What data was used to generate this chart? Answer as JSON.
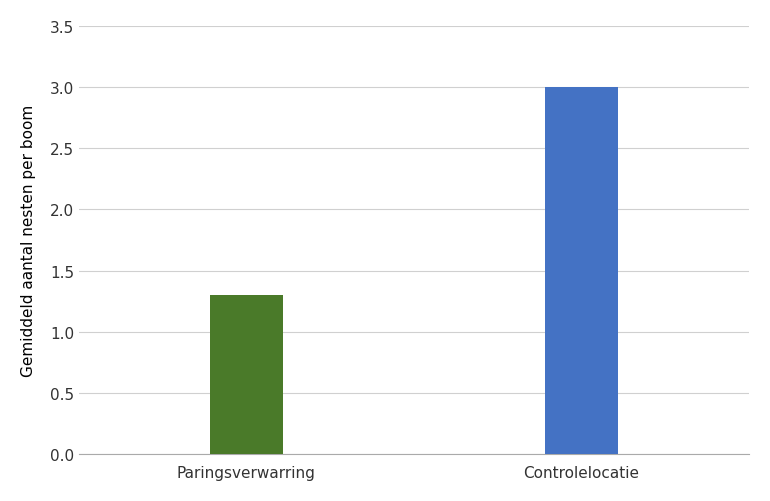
{
  "categories": [
    "Paringsverwarring",
    "Controlelocatie"
  ],
  "values": [
    1.3,
    3.0
  ],
  "bar_colors": [
    "#4a7a29",
    "#4472c4"
  ],
  "ylabel": "Gemiddeld aantal nesten per boom",
  "ylim": [
    0,
    3.5
  ],
  "yticks": [
    0.0,
    0.5,
    1.0,
    1.5,
    2.0,
    2.5,
    3.0,
    3.5
  ],
  "background_color": "#ffffff",
  "grid_color": "#d0d0d0",
  "bar_width": 0.22
}
